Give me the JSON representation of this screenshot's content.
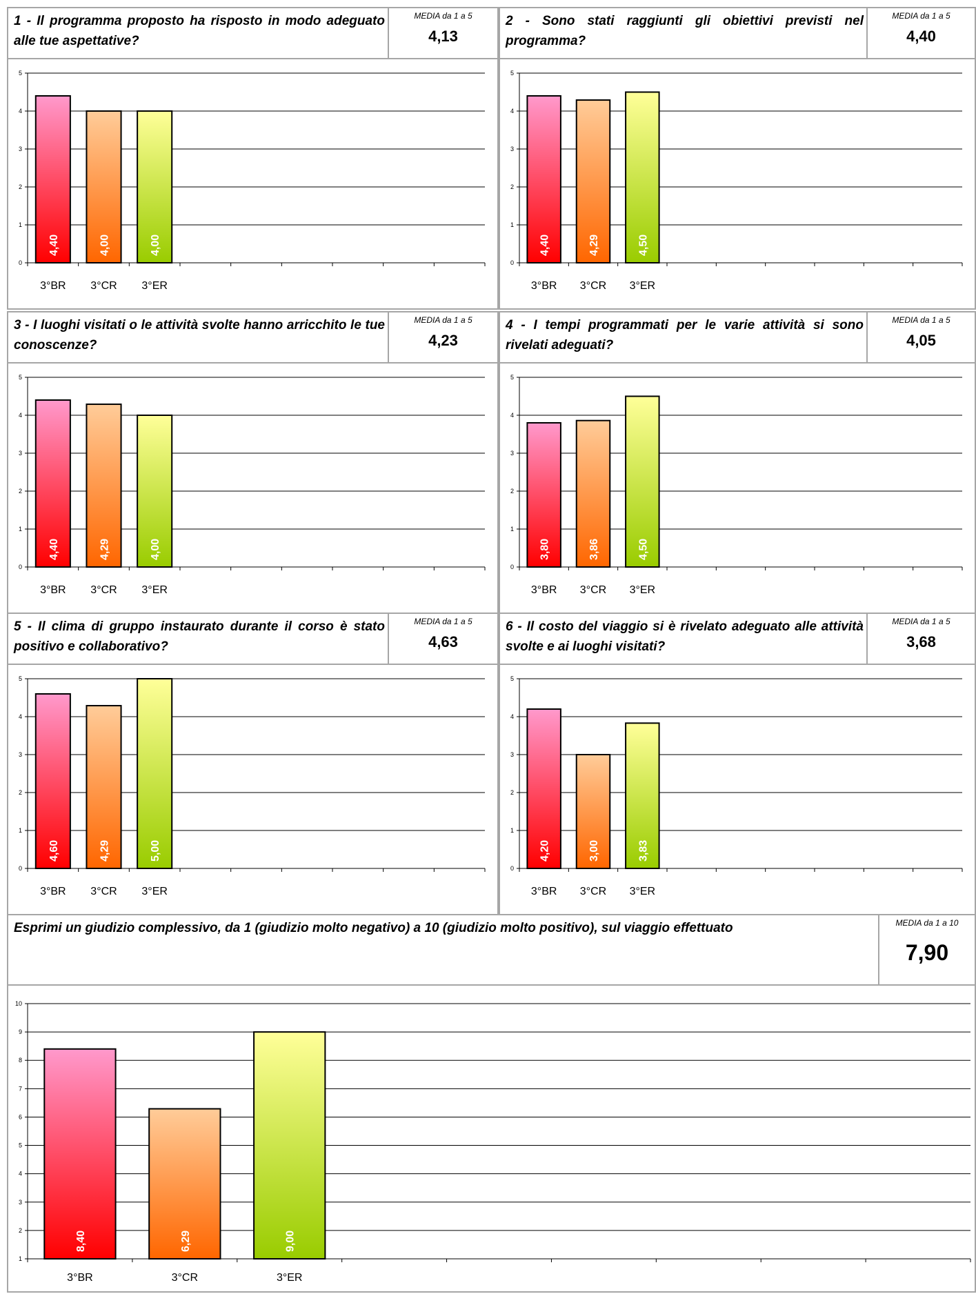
{
  "panels": [
    {
      "id": "q1",
      "question": "1 - Il programma proposto ha risposto in modo adeguato alle tue aspettative?",
      "media_label": "MEDIA da 1 a 5",
      "media_value": "4,13"
    },
    {
      "id": "q2",
      "question": "2 - Sono stati raggiunti gli obiettivi previsti nel programma?",
      "media_label": "MEDIA da 1 a 5",
      "media_value": "4,40"
    },
    {
      "id": "q3",
      "question": "3 - I luoghi visitati o le attività svolte hanno arricchito le tue conoscenze?",
      "media_label": "MEDIA da 1 a 5",
      "media_value": "4,23"
    },
    {
      "id": "q4",
      "question": "4 - I tempi programmati per le varie attività si sono rivelati adeguati?",
      "media_label": "MEDIA da 1 a 5",
      "media_value": "4,05"
    },
    {
      "id": "q5",
      "question": "5 - Il clima di gruppo instaurato durante il corso è stato positivo e collaborativo?",
      "media_label": "MEDIA da 1 a 5",
      "media_value": "4,63"
    },
    {
      "id": "q6",
      "question": "6 - Il costo del viaggio si è rivelato adeguato alle attività svolte e ai luoghi visitati?",
      "media_label": "MEDIA da 1 a 5",
      "media_value": "3,68"
    },
    {
      "id": "q7",
      "question": "Esprimi un giudizio complessivo, da 1 (giudizio molto negativo) a 10 (giudizio molto positivo), sul viaggio effettuato",
      "media_label": "MEDIA da 1 a 10",
      "media_value": "7,90"
    }
  ],
  "colors": {
    "br": {
      "top": "#ff99cc",
      "bottom": "#ff0000"
    },
    "cr": {
      "top": "#ffcc99",
      "bottom": "#ff6600"
    },
    "er": {
      "top": "#ffff99",
      "bottom": "#99cc00"
    },
    "border": "#a6a6a6"
  },
  "chart_data": [
    {
      "type": "bar",
      "categories": [
        "3°BR",
        "3°CR",
        "3°ER"
      ],
      "values": [
        4.4,
        4.0,
        4.0
      ],
      "labels": [
        "4,40",
        "4,00",
        "4,00"
      ],
      "ylim": [
        0,
        5
      ],
      "yticks": [
        "0",
        "1",
        "2",
        "3",
        "4",
        "5"
      ],
      "grid": true
    },
    {
      "type": "bar",
      "categories": [
        "3°BR",
        "3°CR",
        "3°ER"
      ],
      "values": [
        4.4,
        4.29,
        4.5
      ],
      "labels": [
        "4,40",
        "4,29",
        "4,50"
      ],
      "ylim": [
        0,
        5
      ],
      "yticks": [
        "0",
        "1",
        "2",
        "3",
        "4",
        "5"
      ],
      "grid": true
    },
    {
      "type": "bar",
      "categories": [
        "3°BR",
        "3°CR",
        "3°ER"
      ],
      "values": [
        4.4,
        4.29,
        4.0
      ],
      "labels": [
        "4,40",
        "4,29",
        "4,00"
      ],
      "ylim": [
        0,
        5
      ],
      "yticks": [
        "0",
        "1",
        "2",
        "3",
        "4",
        "5"
      ],
      "grid": true
    },
    {
      "type": "bar",
      "categories": [
        "3°BR",
        "3°CR",
        "3°ER"
      ],
      "values": [
        3.8,
        3.86,
        4.5
      ],
      "labels": [
        "3,80",
        "3,86",
        "4,50"
      ],
      "ylim": [
        0,
        5
      ],
      "yticks": [
        "0",
        "1",
        "2",
        "3",
        "4",
        "5"
      ],
      "grid": true
    },
    {
      "type": "bar",
      "categories": [
        "3°BR",
        "3°CR",
        "3°ER"
      ],
      "values": [
        4.6,
        4.29,
        5.0
      ],
      "labels": [
        "4,60",
        "4,29",
        "5,00"
      ],
      "ylim": [
        0,
        5
      ],
      "yticks": [
        "0",
        "1",
        "2",
        "3",
        "4",
        "5"
      ],
      "grid": true
    },
    {
      "type": "bar",
      "categories": [
        "3°BR",
        "3°CR",
        "3°ER"
      ],
      "values": [
        4.2,
        3.0,
        3.83
      ],
      "labels": [
        "4,20",
        "3,00",
        "3,83"
      ],
      "ylim": [
        0,
        5
      ],
      "yticks": [
        "0",
        "1",
        "2",
        "3",
        "4",
        "5"
      ],
      "grid": true
    },
    {
      "type": "bar",
      "categories": [
        "3°BR",
        "3°CR",
        "3°ER"
      ],
      "values": [
        8.4,
        6.29,
        9.0
      ],
      "labels": [
        "8,40",
        "6,29",
        "9,00"
      ],
      "ylim": [
        1,
        10
      ],
      "yticks": [
        "1",
        "2",
        "3",
        "4",
        "5",
        "6",
        "7",
        "8",
        "9",
        "10"
      ],
      "grid": true
    }
  ]
}
